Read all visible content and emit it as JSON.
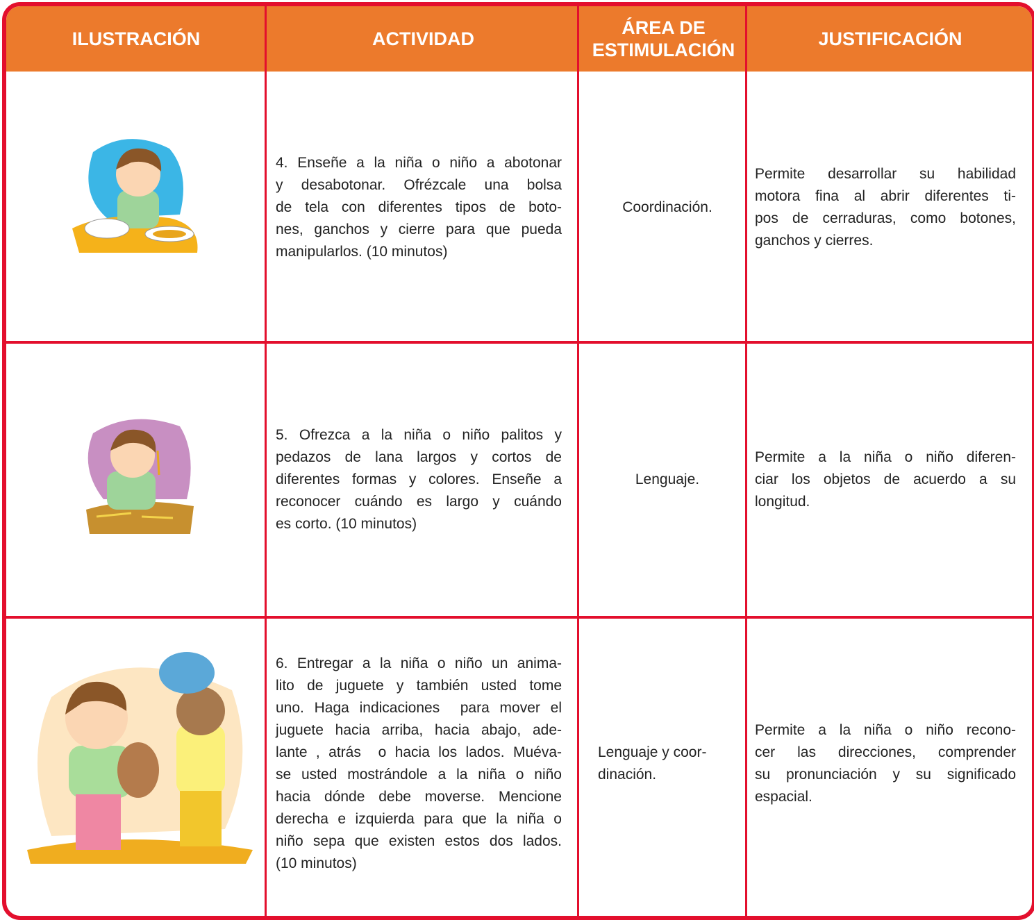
{
  "table": {
    "header": [
      "ILUSTRACIÓN",
      "ACTIVIDAD",
      "ÁREA DE ESTIMULACIÓN",
      "JUSTIFICACIÓN"
    ],
    "rows": [
      {
        "activity": [
          "4. Enseñe a la niña o niño a abotonar",
          "y desabotonar. Ofrézcale una bolsa",
          "de tela con diferentes tipos de boto-",
          "nes, ganchos y cierre para que pueda",
          "manipularlos. (10 minutos)"
        ],
        "area": [
          "Coordinación."
        ],
        "justification": [
          "Permite desarrollar su habilidad",
          "motora fina al abrir diferentes ti-",
          "pos de cerraduras, como botones,",
          "ganchos y cierres."
        ]
      },
      {
        "activity": [
          "5. Ofrezca a la niña o niño palitos y",
          "pedazos de lana largos y cortos de",
          "diferentes formas y colores. Enseñe a",
          "reconocer cuándo es largo y cuándo",
          "es corto. (10 minutos)"
        ],
        "area": [
          "Lenguaje."
        ],
        "justification": [
          "Permite a la niña o niño diferen-",
          "ciar los objetos de acuerdo a su",
          "longitud."
        ]
      },
      {
        "activity": [
          "6. Entregar a la niña o niño un anima-",
          "lito de juguete y también usted tome",
          "uno. Haga indicaciones  para mover el",
          "juguete hacia arriba, hacia abajo, ade-",
          "lante , atrás  o hacia los lados. Muéva-",
          "se usted mostrándole a la niña o niño",
          "hacia dónde debe moverse. Mencione",
          "derecha e izquierda para que la niña o",
          "niño sepa que existen estos dos lados.",
          "(10 minutos)"
        ],
        "area": [
          "Lenguaje y coor-",
          "dinación."
        ],
        "justification": [
          "Permite a la niña o niño recono-",
          "cer las direcciones, comprender",
          "su pronunciación y su significado",
          "espacial."
        ]
      }
    ]
  }
}
